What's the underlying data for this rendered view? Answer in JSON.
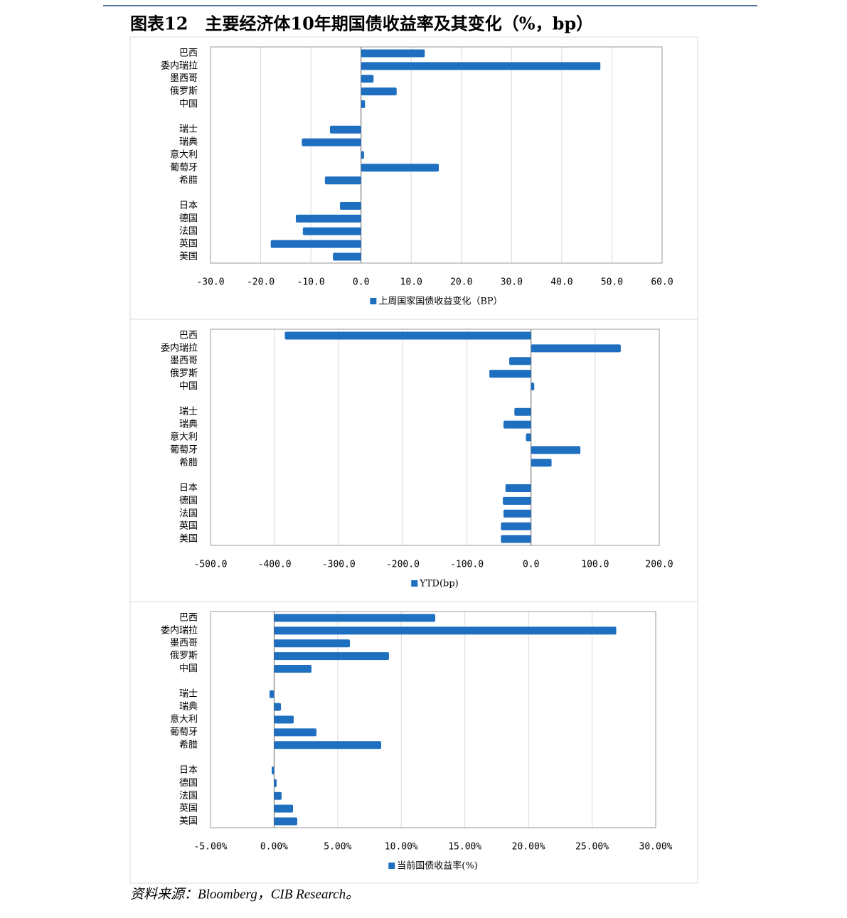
{
  "title": "图表12　主要经济体10年期国债收益率及其变化（%，bp）",
  "source": "资料来源：Bloomberg，CIB Research。",
  "chart_data": [
    {
      "type": "barh",
      "legend": "bottom",
      "grid": true,
      "categories": [
        "巴西",
        "委内瑞拉",
        "墨西哥",
        "俄罗斯",
        "中国",
        null,
        "瑞士",
        "瑞典",
        "意大利",
        "葡萄牙",
        "希腊",
        null,
        "日本",
        "德国",
        "法国",
        "英国",
        "美国"
      ],
      "series": [
        {
          "name": "上周国家国债收益变化（BP）",
          "color": "#1f6fc0",
          "values": [
            12.7,
            47.7,
            2.5,
            7.1,
            0.8,
            null,
            -6.2,
            -11.8,
            0.6,
            15.5,
            -7.2,
            null,
            -4.2,
            -13.0,
            -11.6,
            -18.0,
            -5.6
          ]
        }
      ],
      "xlim": [
        -30,
        60
      ],
      "xticks": [
        {
          "value": -30,
          "label": "-30.0"
        },
        {
          "value": -20,
          "label": "-20.0"
        },
        {
          "value": -10,
          "label": "-10.0"
        },
        {
          "value": 0,
          "label": "0.0"
        },
        {
          "value": 10,
          "label": "10.0"
        },
        {
          "value": 20,
          "label": "20.0"
        },
        {
          "value": 30,
          "label": "30.0"
        },
        {
          "value": 40,
          "label": "40.0"
        },
        {
          "value": 50,
          "label": "50.0"
        },
        {
          "value": 60,
          "label": "60.0"
        }
      ]
    },
    {
      "type": "barh",
      "legend": "bottom",
      "grid": true,
      "categories": [
        "巴西",
        "委内瑞拉",
        "墨西哥",
        "俄罗斯",
        "中国",
        null,
        "瑞士",
        "瑞典",
        "意大利",
        "葡萄牙",
        "希腊",
        null,
        "日本",
        "德国",
        "法国",
        "英国",
        "美国"
      ],
      "series": [
        {
          "name": "YTD(bp)",
          "color": "#1f6fc0",
          "values": [
            -384,
            140,
            -34,
            -65,
            5,
            null,
            -26,
            -43,
            -8,
            77,
            32,
            null,
            -40,
            -44,
            -43,
            -47,
            -47
          ]
        }
      ],
      "xlim": [
        -500,
        200
      ],
      "xticks": [
        {
          "value": -500,
          "label": "-500.0"
        },
        {
          "value": -400,
          "label": "-400.0"
        },
        {
          "value": -300,
          "label": "-300.0"
        },
        {
          "value": -200,
          "label": "-200.0"
        },
        {
          "value": -100,
          "label": "-100.0"
        },
        {
          "value": 0,
          "label": "0.0"
        },
        {
          "value": 100,
          "label": "100.0"
        },
        {
          "value": 200,
          "label": "200.0"
        }
      ]
    },
    {
      "type": "barh",
      "legend": "bottom",
      "grid": true,
      "categories": [
        "巴西",
        "委内瑞拉",
        "墨西哥",
        "俄罗斯",
        "中国",
        null,
        "瑞士",
        "瑞典",
        "意大利",
        "葡萄牙",
        "希腊",
        null,
        "日本",
        "德国",
        "法国",
        "英国",
        "美国"
      ],
      "series": [
        {
          "name": "当前国债收益率(%)",
          "color": "#1f6fc0",
          "values": [
            12.67,
            26.9,
            5.96,
            9.03,
            2.94,
            null,
            -0.36,
            0.54,
            1.54,
            3.33,
            8.42,
            null,
            -0.19,
            0.2,
            0.59,
            1.49,
            1.82
          ]
        }
      ],
      "xlim": [
        -5,
        30
      ],
      "xticks": [
        {
          "value": -5,
          "label": "-5.00%"
        },
        {
          "value": 0,
          "label": "0.00%"
        },
        {
          "value": 5,
          "label": "5.00%"
        },
        {
          "value": 10,
          "label": "10.00%"
        },
        {
          "value": 15,
          "label": "15.00%"
        },
        {
          "value": 20,
          "label": "20.00%"
        },
        {
          "value": 25,
          "label": "25.00%"
        },
        {
          "value": 30,
          "label": "30.00%"
        }
      ]
    }
  ]
}
